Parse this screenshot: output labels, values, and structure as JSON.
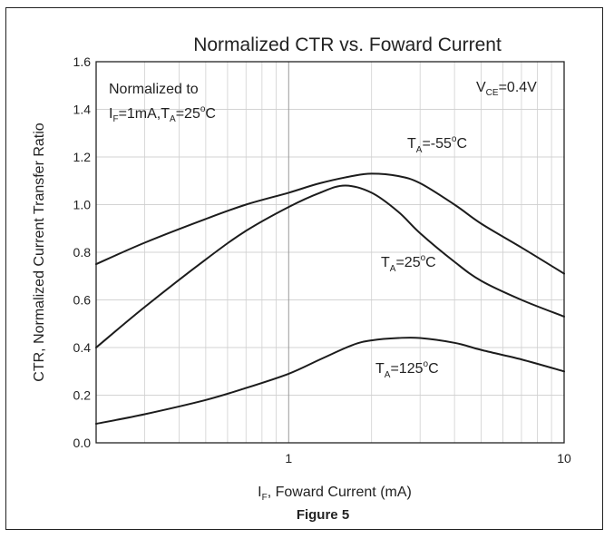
{
  "chart_data": {
    "type": "line",
    "title": "Normalized CTR vs. Foward Current",
    "xlabel": {
      "main": "I",
      "sub": "F",
      "rest": ", Foward Current (mA)"
    },
    "ylabel": "CTR, Normalized Current Transfer Ratio",
    "caption": "Figure 5",
    "x_scale": "log",
    "xlim": [
      0.2,
      10
    ],
    "ylim": [
      0,
      1.6
    ],
    "x_ticks": [
      {
        "value": 1,
        "label": "1"
      },
      {
        "value": 10,
        "label": "10"
      }
    ],
    "y_ticks": [
      {
        "value": 0.0,
        "label": "0.0"
      },
      {
        "value": 0.2,
        "label": "0.2"
      },
      {
        "value": 0.4,
        "label": "0.4"
      },
      {
        "value": 0.6,
        "label": "0.6"
      },
      {
        "value": 0.8,
        "label": "0.8"
      },
      {
        "value": 1.0,
        "label": "1.0"
      },
      {
        "value": 1.2,
        "label": "1.2"
      },
      {
        "value": 1.4,
        "label": "1.4"
      },
      {
        "value": 1.6,
        "label": "1.6"
      }
    ],
    "grid": true,
    "annotations": {
      "normalized_line1": "Normalized to",
      "normalized_line2": {
        "p1": "I",
        "s1": "F",
        "p2": "=1mA,T",
        "s2": "A",
        "p3": "=25",
        "sup": "o",
        "p4": "C"
      },
      "vce": {
        "p1": "V",
        "s1": "CE",
        "p2": "=0.4V"
      }
    },
    "series": [
      {
        "label": {
          "p1": "T",
          "s1": "A",
          "p2": "=-55",
          "sup": "o",
          "p3": "C"
        },
        "x": [
          0.2,
          0.3,
          0.5,
          0.7,
          1.0,
          1.3,
          1.7,
          2.0,
          2.5,
          3.0,
          4.0,
          5.0,
          7.0,
          10.0
        ],
        "y": [
          0.75,
          0.84,
          0.94,
          1.0,
          1.05,
          1.09,
          1.12,
          1.13,
          1.12,
          1.09,
          1.0,
          0.92,
          0.82,
          0.71
        ]
      },
      {
        "label": {
          "p1": "T",
          "s1": "A",
          "p2": "=25",
          "sup": "o",
          "p3": "C"
        },
        "x": [
          0.2,
          0.3,
          0.5,
          0.7,
          1.0,
          1.3,
          1.6,
          2.0,
          2.5,
          3.0,
          4.0,
          5.0,
          7.0,
          10.0
        ],
        "y": [
          0.4,
          0.57,
          0.77,
          0.89,
          0.99,
          1.05,
          1.08,
          1.05,
          0.97,
          0.88,
          0.76,
          0.68,
          0.6,
          0.53
        ]
      },
      {
        "label": {
          "p1": "T",
          "s1": "A",
          "p2": "=125",
          "sup": "o",
          "p3": "C"
        },
        "x": [
          0.2,
          0.3,
          0.5,
          0.7,
          1.0,
          1.3,
          1.7,
          2.0,
          2.5,
          3.0,
          4.0,
          5.0,
          7.0,
          10.0
        ],
        "y": [
          0.08,
          0.12,
          0.18,
          0.23,
          0.29,
          0.35,
          0.41,
          0.43,
          0.44,
          0.44,
          0.42,
          0.39,
          0.35,
          0.3
        ]
      }
    ]
  }
}
